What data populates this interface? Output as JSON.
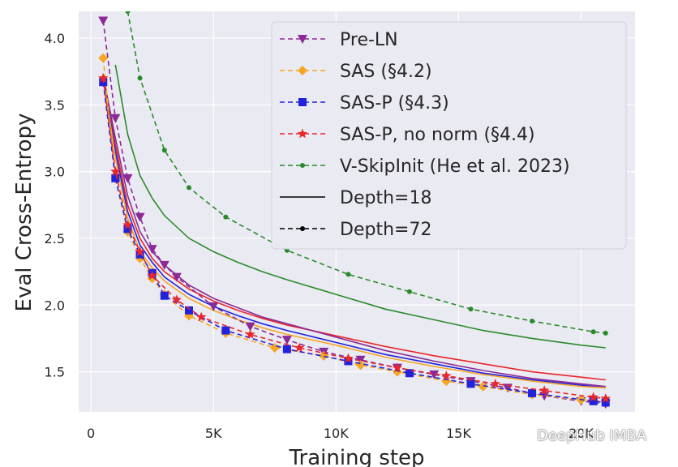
{
  "chart_data": {
    "type": "line",
    "xlabel": "Training step",
    "ylabel": "Eval Cross-Entropy",
    "xlim": [
      -500,
      22200
    ],
    "ylim": [
      1.2,
      4.2
    ],
    "xticks": [
      0,
      5000,
      10000,
      15000,
      20000
    ],
    "xtick_labels": [
      "0",
      "5K",
      "10K",
      "15K",
      "20K"
    ],
    "yticks": [
      1.5,
      2.0,
      2.5,
      3.0,
      3.5,
      4.0
    ],
    "ytick_labels": [
      "1.5",
      "2.0",
      "2.5",
      "3.0",
      "3.5",
      "4.0"
    ],
    "grid": true,
    "legend_position": "top-right",
    "colors": {
      "Pre-LN": "#8b2a96",
      "SAS (§4.2)": "#f5a623",
      "SAS-P (§4.3)": "#2222dd",
      "SAS-P, no norm (§4.4)": "#e8262b",
      "V-SkipInit (He et al. 2023)": "#2a8a2a",
      "background": "#eaeaf2",
      "grid": "#ffffff"
    },
    "legend": [
      {
        "label": "Pre-LN",
        "color": "#8b2a96",
        "style": "dashed",
        "marker": "triangle-down"
      },
      {
        "label": "SAS (§4.2)",
        "color": "#f5a623",
        "style": "dashed",
        "marker": "diamond"
      },
      {
        "label": "SAS-P (§4.3)",
        "color": "#2222dd",
        "style": "dashed",
        "marker": "square"
      },
      {
        "label": "SAS-P, no norm (§4.4)",
        "color": "#e8262b",
        "style": "dashed",
        "marker": "star"
      },
      {
        "label": "V-SkipInit (He et al. 2023)",
        "color": "#2a8a2a",
        "style": "dashed",
        "marker": "dot"
      },
      {
        "label": "Depth=18",
        "color": "#000000",
        "style": "solid",
        "marker": "none"
      },
      {
        "label": "Depth=72",
        "color": "#000000",
        "style": "dashed",
        "marker": "dot"
      }
    ],
    "series": [
      {
        "method": "Pre-LN",
        "depth": 18,
        "style": "solid",
        "x": [
          500,
          1000,
          1500,
          2000,
          2500,
          3000,
          4000,
          5000,
          6000,
          7000,
          8000,
          10000,
          12000,
          14000,
          16000,
          18000,
          20000,
          21000
        ],
        "y": [
          3.72,
          3.25,
          2.82,
          2.55,
          2.4,
          2.3,
          2.15,
          2.05,
          1.98,
          1.91,
          1.86,
          1.76,
          1.66,
          1.58,
          1.51,
          1.45,
          1.41,
          1.39
        ]
      },
      {
        "method": "SAS (§4.2)",
        "depth": 18,
        "style": "solid",
        "x": [
          500,
          1000,
          1500,
          2000,
          2500,
          3000,
          4000,
          5000,
          6000,
          7000,
          8000,
          10000,
          12000,
          14000,
          16000,
          18000,
          20000,
          21000
        ],
        "y": [
          3.72,
          3.1,
          2.65,
          2.4,
          2.28,
          2.18,
          2.05,
          1.96,
          1.89,
          1.83,
          1.78,
          1.7,
          1.61,
          1.54,
          1.48,
          1.43,
          1.39,
          1.38
        ]
      },
      {
        "method": "SAS-P (§4.3)",
        "depth": 18,
        "style": "solid",
        "x": [
          500,
          1000,
          1500,
          2000,
          2500,
          3000,
          4000,
          5000,
          6000,
          7000,
          8000,
          10000,
          12000,
          14000,
          16000,
          18000,
          20000,
          21000
        ],
        "y": [
          3.72,
          3.15,
          2.7,
          2.45,
          2.32,
          2.21,
          2.08,
          1.99,
          1.92,
          1.86,
          1.81,
          1.72,
          1.63,
          1.56,
          1.49,
          1.44,
          1.4,
          1.38
        ]
      },
      {
        "method": "SAS-P, no norm (§4.4)",
        "depth": 18,
        "style": "solid",
        "x": [
          500,
          1000,
          1500,
          2000,
          2500,
          3000,
          4000,
          5000,
          6000,
          7000,
          8000,
          10000,
          12000,
          14000,
          16000,
          18000,
          20000,
          21000
        ],
        "y": [
          3.72,
          3.2,
          2.75,
          2.5,
          2.35,
          2.25,
          2.12,
          2.03,
          1.96,
          1.9,
          1.85,
          1.77,
          1.69,
          1.62,
          1.56,
          1.5,
          1.46,
          1.44
        ]
      },
      {
        "method": "V-SkipInit (He et al. 2023)",
        "depth": 18,
        "style": "solid",
        "x": [
          1000,
          1500,
          2000,
          2500,
          3000,
          4000,
          5000,
          6000,
          7000,
          8000,
          10000,
          12000,
          14000,
          16000,
          18000,
          20000,
          21000
        ],
        "y": [
          3.8,
          3.28,
          2.97,
          2.8,
          2.67,
          2.5,
          2.4,
          2.32,
          2.25,
          2.19,
          2.08,
          1.97,
          1.89,
          1.81,
          1.75,
          1.7,
          1.68
        ]
      },
      {
        "method": "Pre-LN",
        "depth": 72,
        "style": "dashed",
        "x": [
          500,
          1000,
          1500,
          2000,
          2500,
          3000,
          3500,
          5000,
          6500,
          8000,
          9500,
          11000,
          12500,
          14000,
          15500,
          17000,
          18500,
          20000,
          21000
        ],
        "y": [
          4.13,
          3.4,
          2.95,
          2.66,
          2.42,
          2.3,
          2.21,
          1.99,
          1.84,
          1.74,
          1.65,
          1.59,
          1.53,
          1.48,
          1.43,
          1.38,
          1.32,
          1.28,
          1.26
        ]
      },
      {
        "method": "SAS (§4.2)",
        "depth": 72,
        "style": "dashed",
        "x": [
          500,
          1000,
          1500,
          2000,
          2500,
          3000,
          4000,
          5500,
          7500,
          9500,
          11000,
          12500,
          14500,
          16000,
          18000,
          20000,
          21000
        ],
        "y": [
          3.85,
          2.95,
          2.55,
          2.35,
          2.2,
          2.08,
          1.92,
          1.79,
          1.68,
          1.62,
          1.55,
          1.5,
          1.43,
          1.39,
          1.33,
          1.29,
          1.28
        ]
      },
      {
        "method": "SAS-P (§4.3)",
        "depth": 72,
        "style": "dashed",
        "x": [
          500,
          1000,
          1500,
          2000,
          2500,
          3000,
          4000,
          5500,
          8000,
          10500,
          13000,
          15500,
          18000,
          20500,
          21000
        ],
        "y": [
          3.67,
          2.95,
          2.57,
          2.38,
          2.24,
          2.07,
          1.96,
          1.81,
          1.67,
          1.58,
          1.49,
          1.41,
          1.34,
          1.28,
          1.27
        ]
      },
      {
        "method": "SAS-P, no norm (§4.4)",
        "depth": 72,
        "style": "dashed",
        "x": [
          500,
          1000,
          1500,
          2000,
          2500,
          3500,
          4500,
          6500,
          8500,
          10500,
          12500,
          14500,
          16500,
          18500,
          20500,
          21000
        ],
        "y": [
          3.7,
          3.0,
          2.6,
          2.4,
          2.22,
          2.04,
          1.91,
          1.78,
          1.68,
          1.6,
          1.53,
          1.47,
          1.41,
          1.36,
          1.31,
          1.3
        ]
      },
      {
        "method": "V-SkipInit (He et al. 2023)",
        "depth": 72,
        "style": "dashed",
        "x": [
          1500,
          2000,
          3000,
          4000,
          5500,
          8000,
          10500,
          13000,
          15500,
          18000,
          20500,
          21000
        ],
        "y": [
          4.2,
          3.7,
          3.16,
          2.88,
          2.66,
          2.41,
          2.23,
          2.1,
          1.97,
          1.88,
          1.8,
          1.79
        ]
      }
    ]
  },
  "watermark": "DeepHub IMBA"
}
